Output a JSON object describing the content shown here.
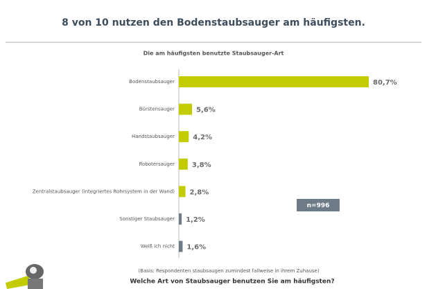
{
  "chart_data": {
    "type": "bar",
    "orientation": "horizontal",
    "title": "8 von 10 nutzen den Bodenstaubsauger am häufigsten.",
    "subtitle": "Die am häufigsten benutzte Staubsauger-Art",
    "categories": [
      "Bodenstaubsauger",
      "Bürstensauger",
      "Handstaubsauger",
      "Robotersauger",
      "Zentralstaubsauger (integriertes Rohrsystem in der Wand)",
      "Sonstiger Staubsauger",
      "Weiß ich nicht"
    ],
    "values": [
      80.7,
      5.6,
      4.2,
      3.8,
      2.8,
      1.2,
      1.6
    ],
    "value_labels": [
      "80,7%",
      "5,6%",
      "4,2%",
      "3,8%",
      "2,8%",
      "1,2%",
      "1,6%"
    ],
    "colors": [
      "#c2cc00",
      "#c2cc00",
      "#c2cc00",
      "#c2cc00",
      "#c2cc00",
      "#6e7b88",
      "#6e7b88"
    ],
    "annotation": "n=996",
    "note": "(Basis: Respondenten staubsaugen zumindest fallweise in ihrem Zuhause)",
    "question": "Welche Art von Staubsauger benutzen Sie am häufigsten?"
  }
}
